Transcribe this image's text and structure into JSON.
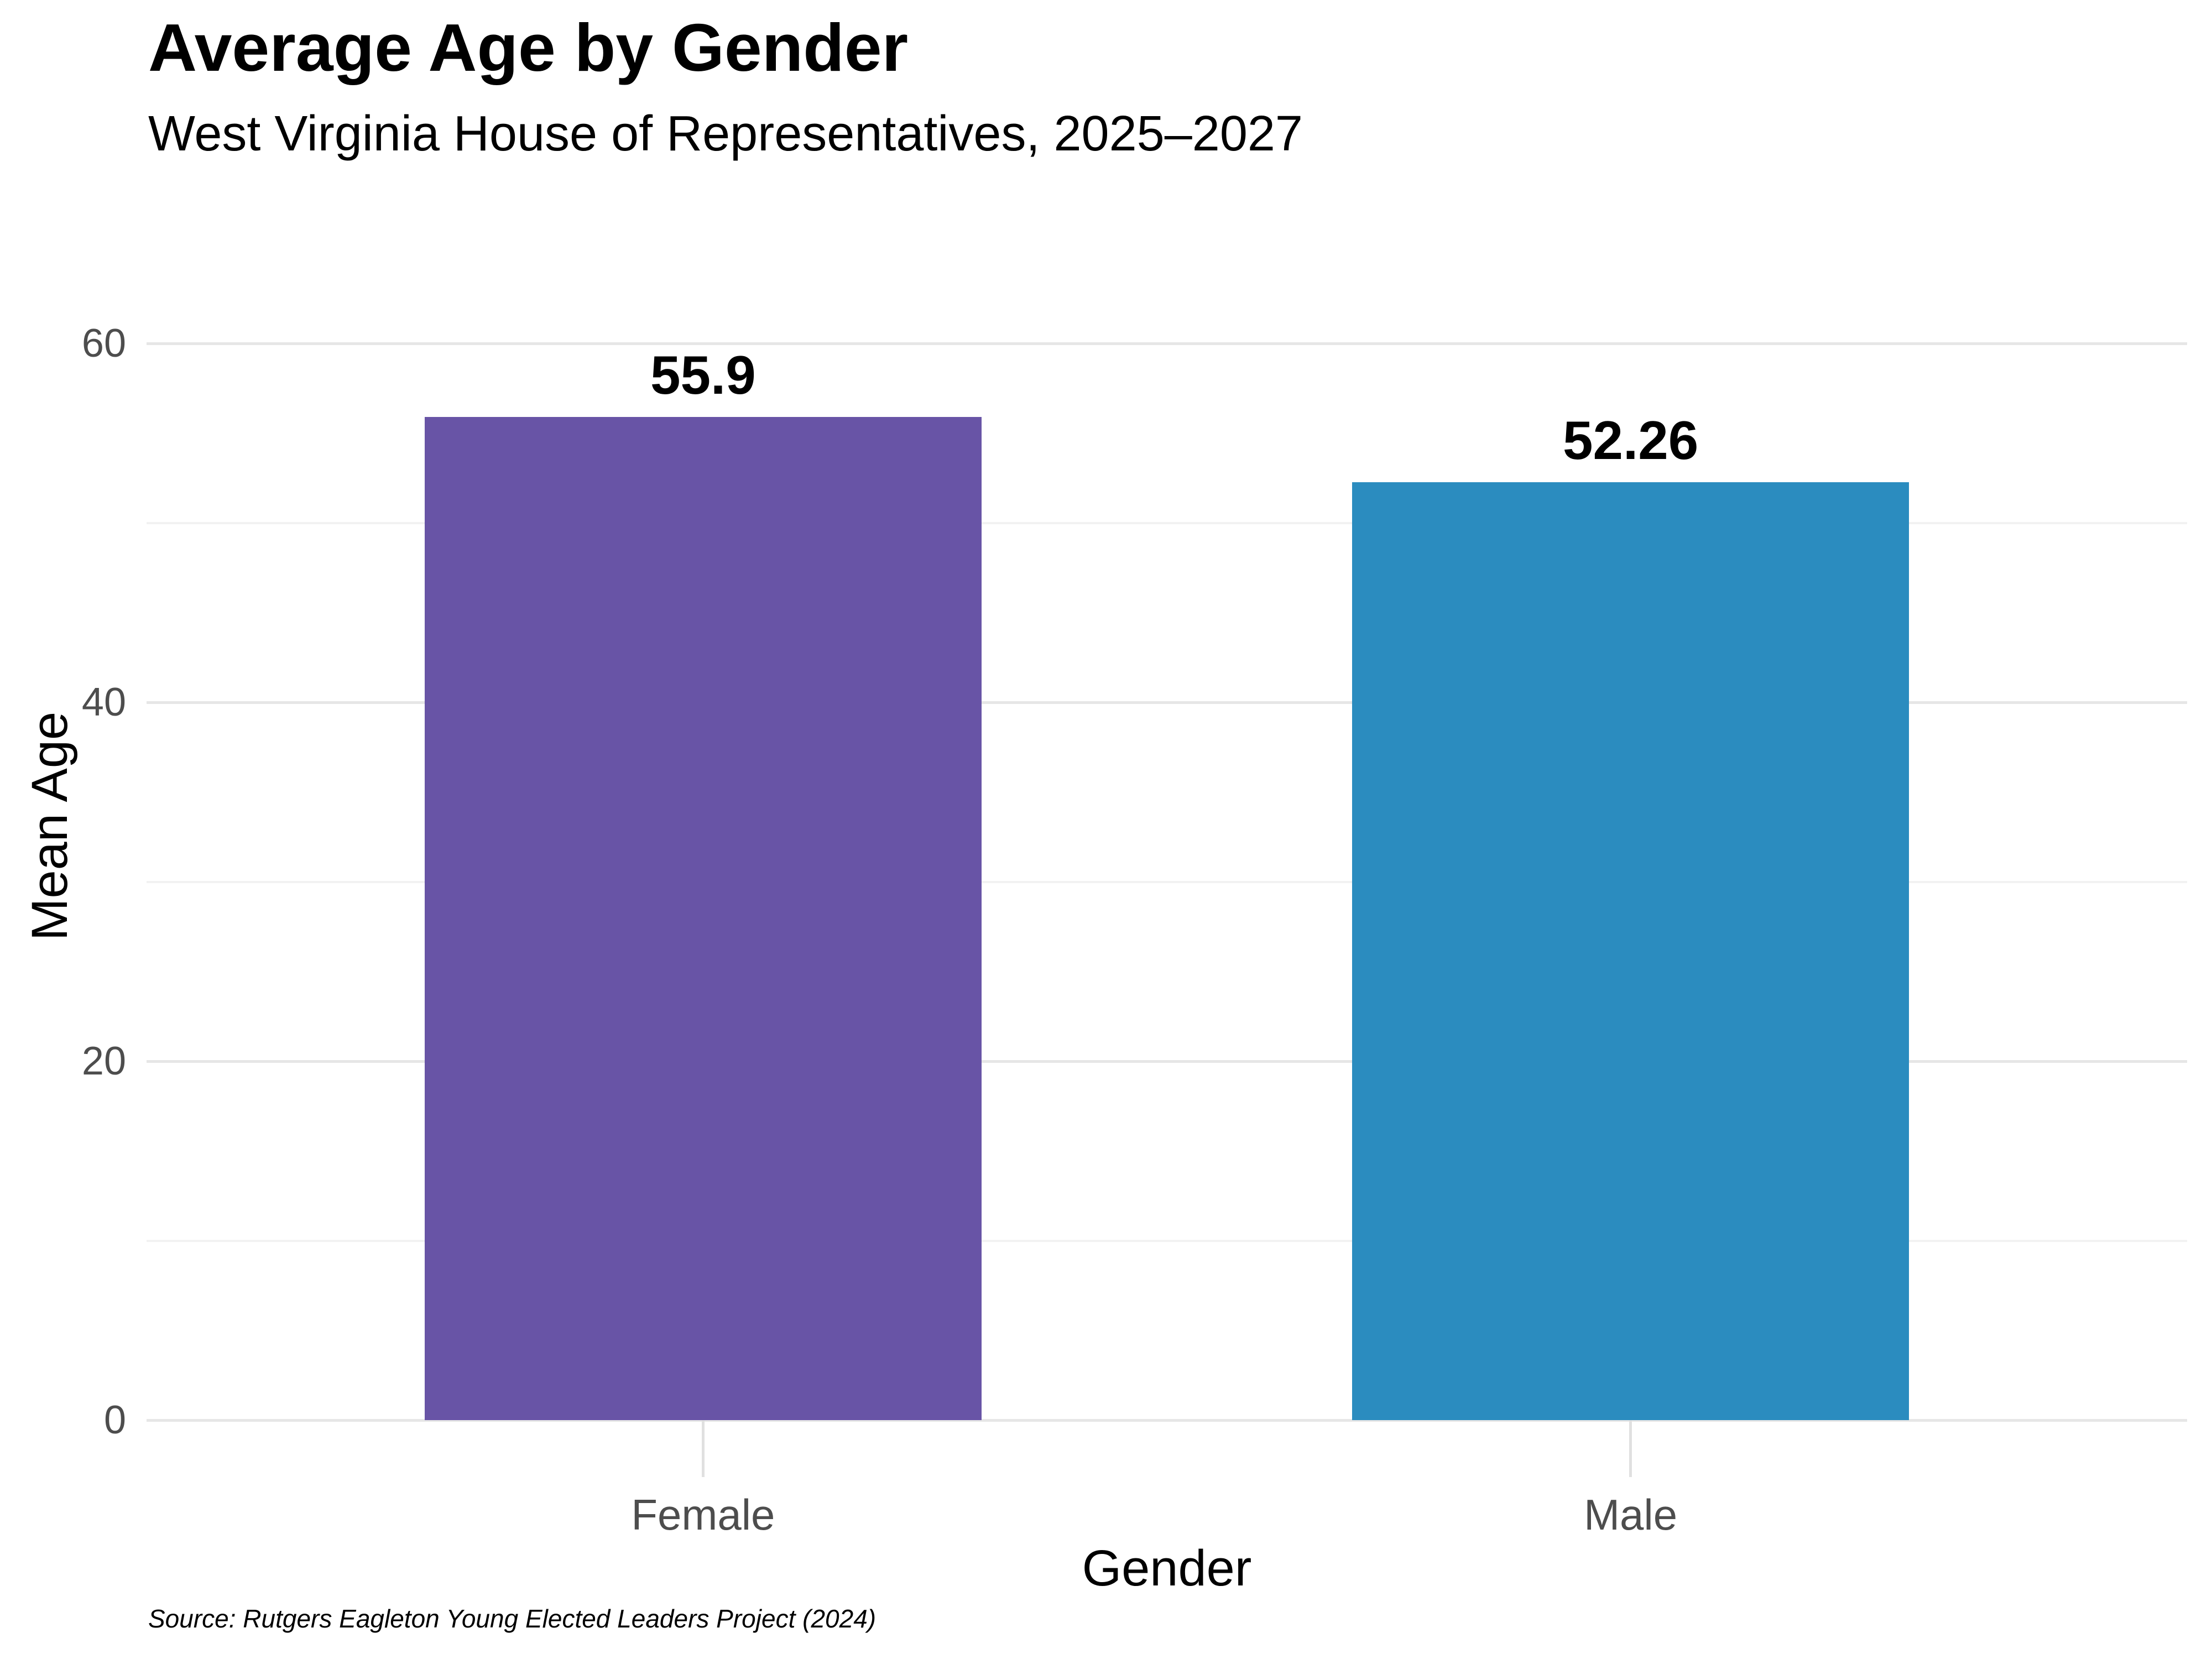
{
  "chart_data": {
    "type": "bar",
    "title": "Average Age by Gender",
    "subtitle": "West Virginia House of Representatives, 2025–2027",
    "xlabel": "Gender",
    "ylabel": "Mean Age",
    "source": "Source: Rutgers Eagleton Young Elected Leaders Project (2024)",
    "categories": [
      "Female",
      "Male"
    ],
    "values": [
      55.9,
      52.26
    ],
    "value_labels": [
      "55.9",
      "52.26"
    ],
    "bar_colors": [
      "#6854A6",
      "#2B8CBF"
    ],
    "ylim": [
      0,
      66.2
    ],
    "yticks": [
      0,
      20,
      40,
      60
    ],
    "yticks_minor": [
      10,
      30,
      50
    ],
    "grid": true,
    "legend": false
  },
  "colors": {
    "background": "#FFFFFF",
    "grid_major": "#E6E6E6",
    "grid_minor": "#F2F2F2",
    "tick_mark": "#E0E0E0",
    "axis_text": "#4D4D4D",
    "text": "#000000",
    "bar_female": "#6854A6",
    "bar_male": "#2B8CBF"
  }
}
